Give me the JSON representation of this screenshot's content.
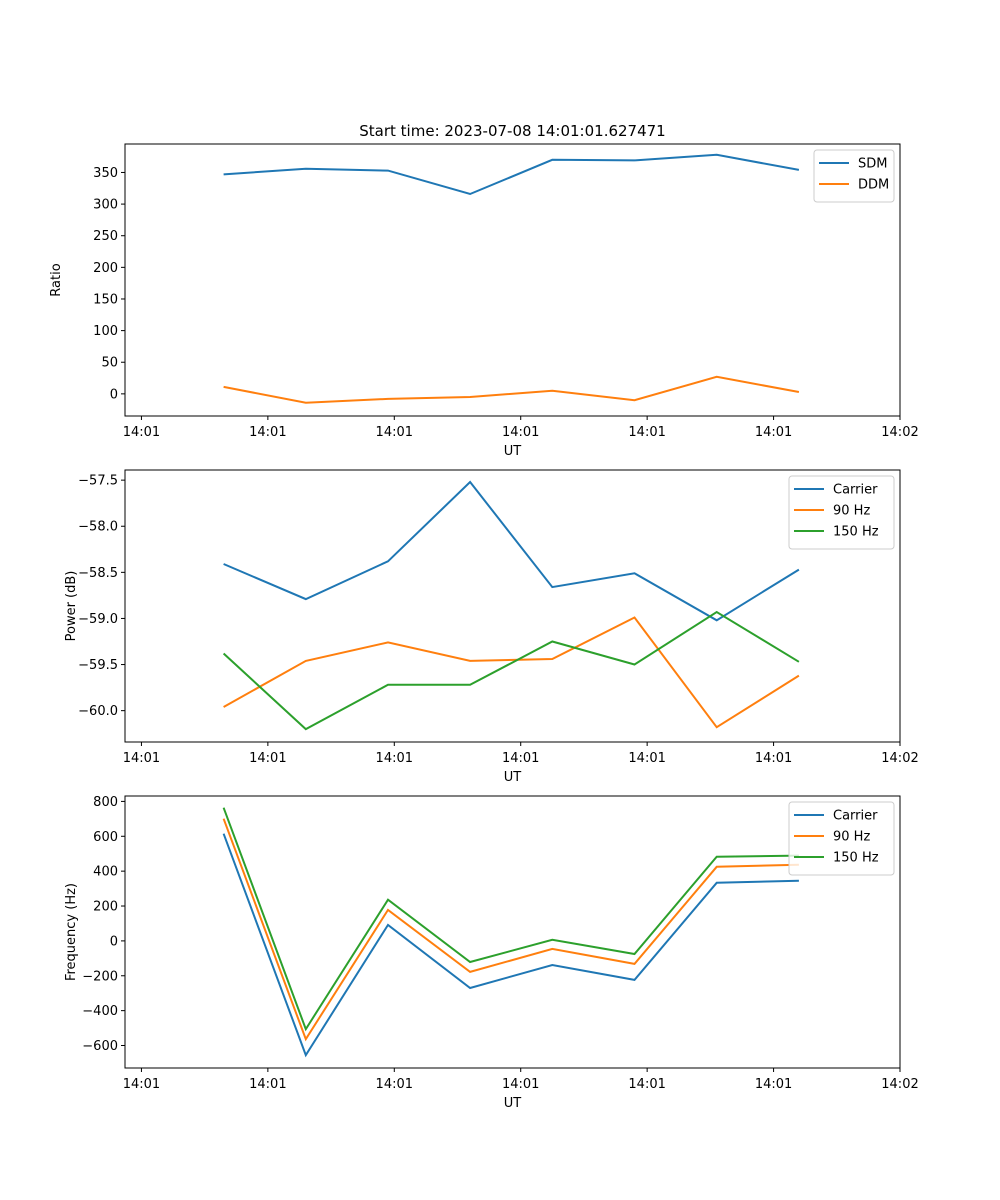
{
  "chart_data": [
    {
      "type": "line",
      "title": "Start time: 2023-07-08 14:01:01.627471",
      "xlabel": "UT",
      "ylabel": "Ratio",
      "x_points": [
        0.65,
        1.3,
        1.95,
        2.6,
        3.25,
        3.9,
        4.55,
        5.2
      ],
      "x_ticks": [
        0,
        1,
        2,
        3,
        4,
        5,
        6
      ],
      "x_tick_labels": [
        "14:01",
        "14:01",
        "14:01",
        "14:01",
        "14:01",
        "14:01",
        "14:02"
      ],
      "xlim": [
        -0.13,
        6.0
      ],
      "ylim": [
        -35,
        395
      ],
      "y_ticks": [
        0,
        50,
        100,
        150,
        200,
        250,
        300,
        350
      ],
      "y_tick_labels": [
        "0",
        "50",
        "100",
        "150",
        "200",
        "250",
        "300",
        "350"
      ],
      "legend_position": "top-right",
      "grid": false,
      "series": [
        {
          "name": "SDM",
          "color": "#1f77b4",
          "values": [
            347,
            356,
            353,
            316,
            370,
            369,
            378,
            354
          ]
        },
        {
          "name": "DDM",
          "color": "#ff7f0e",
          "values": [
            11,
            -14,
            -8,
            -5,
            5,
            -10,
            27,
            3
          ]
        }
      ]
    },
    {
      "type": "line",
      "title": "",
      "xlabel": "UT",
      "ylabel": "Power (dB)",
      "x_points": [
        0.65,
        1.3,
        1.95,
        2.6,
        3.25,
        3.9,
        4.55,
        5.2
      ],
      "x_ticks": [
        0,
        1,
        2,
        3,
        4,
        5,
        6
      ],
      "x_tick_labels": [
        "14:01",
        "14:01",
        "14:01",
        "14:01",
        "14:01",
        "14:01",
        "14:02"
      ],
      "xlim": [
        -0.13,
        6.0
      ],
      "ylim": [
        -60.34,
        -57.39
      ],
      "y_ticks": [
        -60.0,
        -59.5,
        -59.0,
        -58.5,
        -58.0,
        -57.5
      ],
      "y_tick_labels": [
        "−60.0",
        "−59.5",
        "−59.0",
        "−58.5",
        "−58.0",
        "−57.5"
      ],
      "legend_position": "top-right",
      "grid": false,
      "series": [
        {
          "name": "Carrier",
          "color": "#1f77b4",
          "values": [
            -58.41,
            -58.79,
            -58.38,
            -57.52,
            -58.66,
            -58.51,
            -59.02,
            -58.47
          ]
        },
        {
          "name": "90 Hz",
          "color": "#ff7f0e",
          "values": [
            -59.96,
            -59.46,
            -59.26,
            -59.46,
            -59.44,
            -58.99,
            -60.18,
            -59.62
          ]
        },
        {
          "name": "150 Hz",
          "color": "#2ca02c",
          "values": [
            -59.38,
            -60.2,
            -59.72,
            -59.72,
            -59.25,
            -59.5,
            -58.93,
            -59.47
          ]
        }
      ]
    },
    {
      "type": "line",
      "title": "",
      "xlabel": "UT",
      "ylabel": "Frequency (Hz)",
      "x_points": [
        0.65,
        1.3,
        1.95,
        2.6,
        3.25,
        3.9,
        4.55,
        5.2
      ],
      "x_ticks": [
        0,
        1,
        2,
        3,
        4,
        5,
        6
      ],
      "x_tick_labels": [
        "14:01",
        "14:01",
        "14:01",
        "14:01",
        "14:01",
        "14:01",
        "14:02"
      ],
      "xlim": [
        -0.13,
        6.0
      ],
      "ylim": [
        -729,
        831
      ],
      "y_ticks": [
        -600,
        -400,
        -200,
        0,
        200,
        400,
        600,
        800
      ],
      "y_tick_labels": [
        "−600",
        "−400",
        "−200",
        "0",
        "200",
        "400",
        "600",
        "800"
      ],
      "legend_position": "top-right",
      "grid": false,
      "series": [
        {
          "name": "Carrier",
          "color": "#1f77b4",
          "values": [
            615,
            -655,
            92,
            -270,
            -138,
            -224,
            333,
            345
          ]
        },
        {
          "name": "90 Hz",
          "color": "#ff7f0e",
          "values": [
            701,
            -563,
            178,
            -178,
            -46,
            -132,
            425,
            437
          ]
        },
        {
          "name": "150 Hz",
          "color": "#2ca02c",
          "values": [
            764,
            -506,
            236,
            -121,
            6,
            -75,
            483,
            489
          ]
        }
      ]
    }
  ]
}
